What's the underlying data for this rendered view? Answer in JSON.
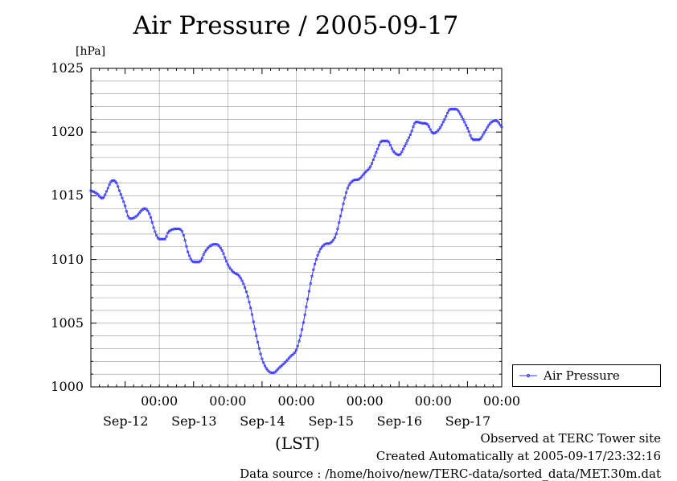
{
  "title": "Air Pressure / 2005-09-17",
  "y_unit": "[hPa]",
  "xlabel": "(LST)",
  "legend_label": "Air Pressure",
  "footer": {
    "line1": "Observed at TERC Tower site",
    "line2": "Created Automatically at 2005-09-17/23:32:16",
    "line3": "Data source : /home/hoivo/new/TERC-data/sorted_data/MET.30m.dat"
  },
  "colors": {
    "series": "#3333ff",
    "grid": "#999999",
    "axis": "#000000"
  },
  "chart_data": {
    "type": "line",
    "x_unit": "hours from Sep-11 12:00 (LST)",
    "xlim": [
      0,
      144
    ],
    "ylim": [
      1000,
      1025
    ],
    "y_ticks": [
      1000,
      1005,
      1010,
      1015,
      1020,
      1025
    ],
    "y_tick_labels": [
      "1000",
      "1005",
      "1010",
      "1015",
      "1020",
      "1025"
    ],
    "x_ticks": [
      {
        "x": 24,
        "time": "00:00",
        "date": "Sep-12"
      },
      {
        "x": 48,
        "time": "00:00",
        "date": "Sep-13"
      },
      {
        "x": 72,
        "time": "00:00",
        "date": "Sep-14"
      },
      {
        "x": 96,
        "time": "00:00",
        "date": "Sep-15"
      },
      {
        "x": 120,
        "time": "00:00",
        "date": "Sep-16"
      },
      {
        "x": 144,
        "time": "00:00",
        "date": "Sep-17"
      }
    ],
    "grid": true,
    "legend_position": "bottom-right, outside plot",
    "series": [
      {
        "name": "Air Pressure",
        "x": [
          0,
          2,
          4,
          6,
          7,
          8,
          9,
          10,
          12,
          13,
          14,
          16,
          18,
          19,
          20,
          21,
          22,
          24,
          26,
          27,
          28,
          30,
          32,
          33,
          34,
          36,
          38,
          40,
          42,
          44,
          46,
          48,
          50,
          52,
          54,
          56,
          58,
          60,
          62,
          64,
          66,
          68,
          70,
          72,
          74,
          76,
          78,
          80,
          82,
          84,
          86,
          88,
          90,
          92,
          94,
          96,
          98,
          100,
          102,
          104,
          106,
          108,
          110,
          112,
          114,
          116,
          118,
          120,
          122,
          124,
          126,
          128,
          130,
          132,
          134,
          136,
          138,
          140,
          142,
          144
        ],
        "values": [
          1015.4,
          1015.2,
          1014.8,
          1015.6,
          1016.1,
          1016.2,
          1016.0,
          1015.4,
          1014.2,
          1013.4,
          1013.2,
          1013.4,
          1013.9,
          1014.0,
          1013.8,
          1013.3,
          1012.5,
          1011.6,
          1011.6,
          1012.1,
          1012.3,
          1012.4,
          1012.2,
          1011.5,
          1010.6,
          1009.8,
          1009.8,
          1010.6,
          1011.1,
          1011.2,
          1010.7,
          1009.6,
          1009.0,
          1008.7,
          1007.8,
          1006.2,
          1004.0,
          1002.2,
          1001.3,
          1001.1,
          1001.5,
          1001.9,
          1002.4,
          1002.9,
          1004.5,
          1006.9,
          1009.2,
          1010.6,
          1011.2,
          1011.3,
          1012.0,
          1013.9,
          1015.6,
          1016.2,
          1016.3,
          1016.8,
          1017.3,
          1018.4,
          1019.3,
          1019.3,
          1018.5,
          1018.2,
          1018.9,
          1019.8,
          1020.8,
          1020.7,
          1020.6,
          1019.9,
          1020.2,
          1021.0,
          1021.8,
          1021.8,
          1021.2,
          1020.3,
          1019.4,
          1019.4,
          1020.0,
          1020.7,
          1020.9,
          1020.4
        ]
      }
    ]
  }
}
